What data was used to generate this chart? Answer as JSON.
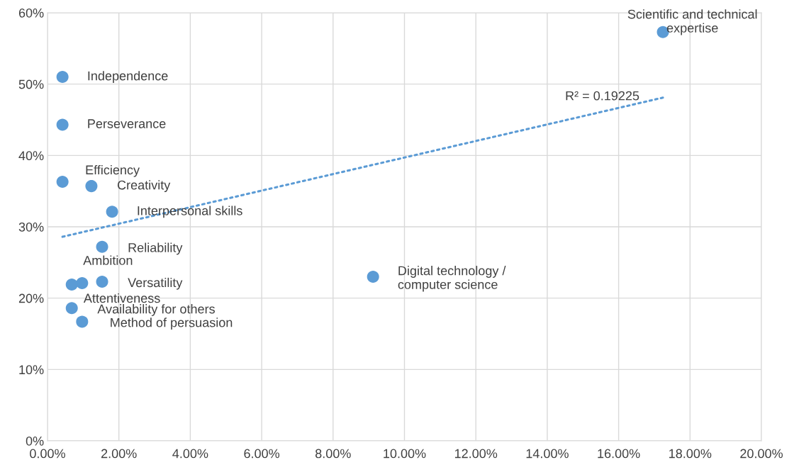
{
  "chart_data": {
    "type": "scatter",
    "color": "#5b9bd5",
    "marker": "circle",
    "grid": true,
    "legend": false,
    "x": [
      0.42,
      0.42,
      0.42,
      1.23,
      1.81,
      1.53,
      0.97,
      0.68,
      1.53,
      0.68,
      0.97,
      9.12,
      17.24
    ],
    "values": [
      51.0,
      44.3,
      36.3,
      35.7,
      32.1,
      27.2,
      22.1,
      21.9,
      22.3,
      18.6,
      16.7,
      23.0,
      57.3
    ],
    "series": [
      {
        "type": "line",
        "line_style": "dotted",
        "marker": "none",
        "color": "#5b9bd5",
        "x": [
          0.42,
          17.24
        ],
        "values": [
          28.6,
          48.1
        ]
      }
    ],
    "annotations": [
      {
        "text": "Independence",
        "x": 0.42,
        "y": 51.0
      },
      {
        "text": "Perseverance",
        "x": 0.42,
        "y": 44.3
      },
      {
        "text": "Efficiency",
        "x": 0.42,
        "y": 36.3
      },
      {
        "text": "Creativity",
        "x": 1.23,
        "y": 35.7
      },
      {
        "text": "Interpersonal skills",
        "x": 1.81,
        "y": 32.1
      },
      {
        "text": "Reliability",
        "x": 1.53,
        "y": 27.2
      },
      {
        "text": "Ambition",
        "x": 0.97,
        "y": 22.1
      },
      {
        "text": "Attentiveness",
        "x": 0.68,
        "y": 21.9
      },
      {
        "text": "Versatility",
        "x": 1.53,
        "y": 22.3
      },
      {
        "text": "Availability for others",
        "x": 0.68,
        "y": 18.6
      },
      {
        "text": "Method of persuasion",
        "x": 0.97,
        "y": 16.7
      },
      {
        "text": "Digital technology /\ncomputer science",
        "x": 9.12,
        "y": 23.0
      },
      {
        "text": "Scientific and technical\nexpertise",
        "x": 17.24,
        "y": 57.3
      },
      {
        "text": "R² = 0.19225",
        "x": 14.5,
        "y": 44.9
      }
    ],
    "xlim": [
      0,
      20
    ],
    "ylim": [
      0,
      60
    ],
    "xticks": [
      {
        "value": 0,
        "label": "0.00%"
      },
      {
        "value": 2,
        "label": "2.00%"
      },
      {
        "value": 4,
        "label": "4.00%"
      },
      {
        "value": 6,
        "label": "6.00%"
      },
      {
        "value": 8,
        "label": "8.00%"
      },
      {
        "value": 10,
        "label": "10.00%"
      },
      {
        "value": 12,
        "label": "12.00%"
      },
      {
        "value": 14,
        "label": "14.00%"
      },
      {
        "value": 16,
        "label": "16.00%"
      },
      {
        "value": 18,
        "label": "18.00%"
      },
      {
        "value": 20,
        "label": "20.00%"
      }
    ],
    "yticks": [
      {
        "value": 0,
        "label": "0%"
      },
      {
        "value": 10,
        "label": "10%"
      },
      {
        "value": 20,
        "label": "20%"
      },
      {
        "value": 30,
        "label": "30%"
      },
      {
        "value": 40,
        "label": "40%"
      },
      {
        "value": 50,
        "label": "50%"
      },
      {
        "value": 60,
        "label": "60%"
      }
    ]
  }
}
